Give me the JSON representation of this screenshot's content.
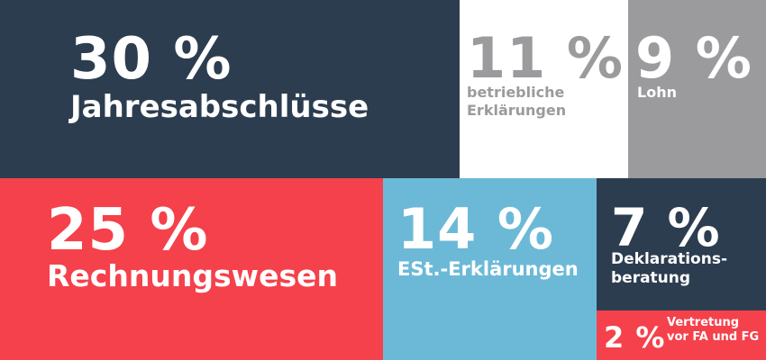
{
  "chart_data": {
    "type": "treemap",
    "categories": [
      "Jahresabschlüsse",
      "betriebliche\nErklärungen",
      "Lohn",
      "Rechnungswesen",
      "ESt.-Erklärungen",
      "Deklarations-\nberatung",
      "Vertretung\nvor FA und FG"
    ],
    "values": [
      30,
      11,
      9,
      25,
      14,
      7,
      2
    ],
    "value_labels": [
      "30 %",
      "11 %",
      "9 %",
      "25 %",
      "14 %",
      "7 %",
      "2 %"
    ],
    "colors": [
      "#2d3d50",
      "#ffffff",
      "#9b9b9e",
      "#f5414b",
      "#6cb9d7",
      "#2d3d50",
      "#f5414b"
    ],
    "text_colors": [
      "#ffffff",
      "#9b9b9e",
      "#ffffff",
      "#ffffff",
      "#ffffff",
      "#ffffff",
      "#ffffff"
    ]
  }
}
